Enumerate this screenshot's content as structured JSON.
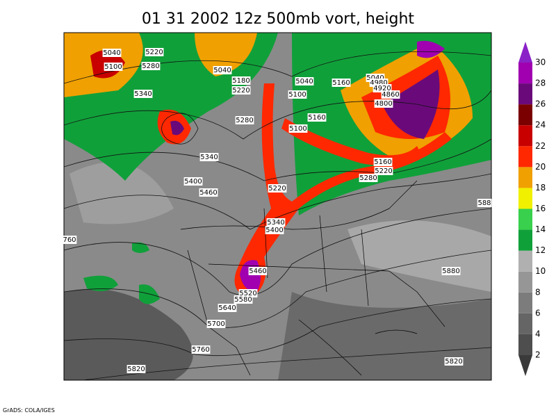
{
  "title": "01 31 2002 12z 500mb vort, height",
  "credit": "GrADS: COLA/IGES",
  "colorbar": {
    "ticks": [
      2,
      4,
      6,
      8,
      10,
      12,
      14,
      16,
      18,
      20,
      22,
      24,
      26,
      28,
      30
    ],
    "colors": [
      "#3a3a3a",
      "#4e4e4e",
      "#656565",
      "#7c7c7c",
      "#969696",
      "#b0b0b0",
      "#10a03a",
      "#38d04c",
      "#f0f000",
      "#f0a000",
      "#ff2800",
      "#c80000",
      "#7a0000",
      "#6a0a7a",
      "#a000b0",
      "#e030e8",
      "#8a22c8"
    ]
  },
  "contour_labels": [
    "5040",
    "5220",
    "5100",
    "5280",
    "5040",
    "5340",
    "5180",
    "5220",
    "5040",
    "5100",
    "5160",
    "5040",
    "4980",
    "4920",
    "4860",
    "4800",
    "5280",
    "5160",
    "5100",
    "5340",
    "5400",
    "5460",
    "5220",
    "5160",
    "5220",
    "5280",
    "5340",
    "5400",
    "5460",
    "5520",
    "5580",
    "5640",
    "5700",
    "5760",
    "5820",
    "5880",
    "5820",
    "588",
    "760"
  ]
}
